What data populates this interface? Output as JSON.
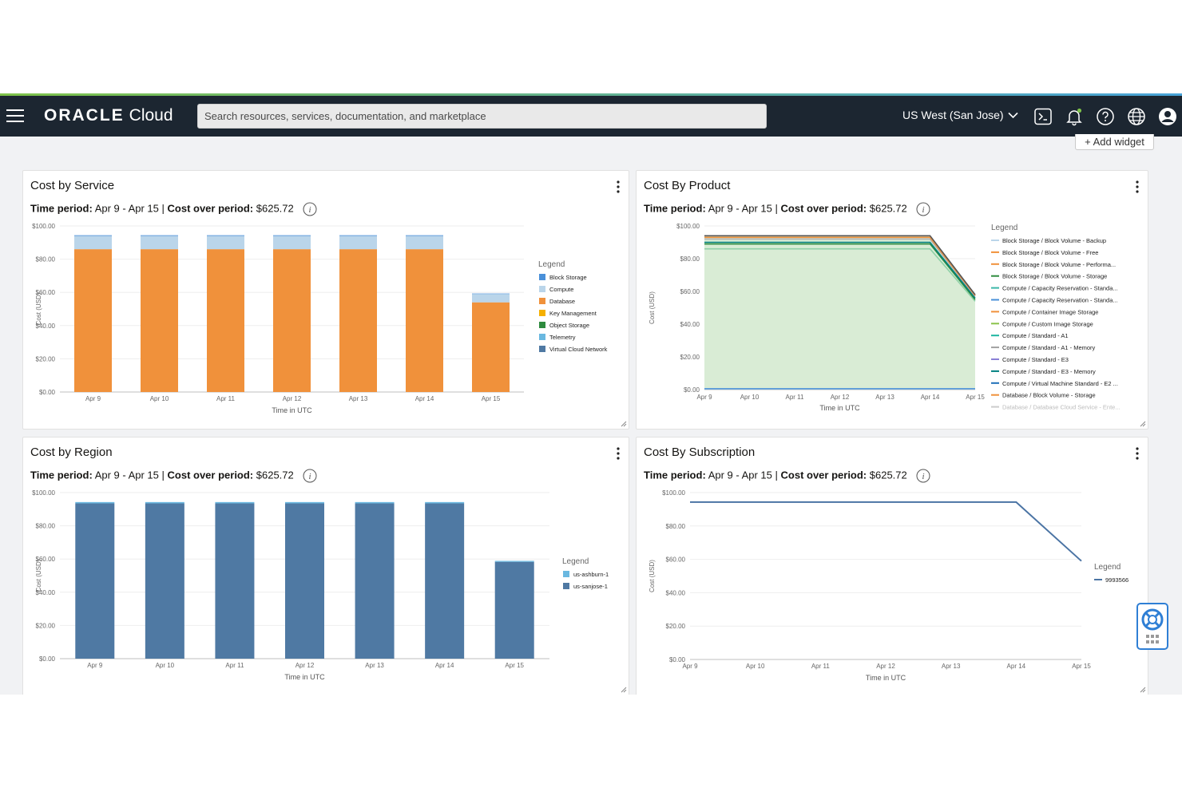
{
  "header": {
    "brand_main": "ORACLE",
    "brand_sub": "Cloud",
    "search_placeholder": "Search resources, services, documentation, and marketplace",
    "region": "US West (San Jose)",
    "icons": [
      "menu-icon",
      "cloud-shell-icon",
      "bell-icon",
      "help-icon",
      "globe-icon",
      "user-icon"
    ]
  },
  "toolbar": {
    "add_widget": "+ Add widget"
  },
  "colors": {
    "topbar": "#1c2631",
    "orange": "#f0913b",
    "light_blue": "#bad5ea",
    "steel_blue": "#4f79a3",
    "area_green": "#d9ecd5",
    "line_blue": "#4b74a4"
  },
  "widgets": {
    "service": {
      "title": "Cost by Service",
      "period_label": "Time period:",
      "period_value": "Apr 9 - Apr 15",
      "cost_label": "Cost over period:",
      "cost_value": "$625.72",
      "legend_title": "Legend",
      "legend": [
        "Block Storage",
        "Compute",
        "Database",
        "Key Management",
        "Object Storage",
        "Telemetry",
        "Virtual Cloud Network"
      ],
      "xlabel": "Time in UTC",
      "ylabel": "Cost (USD)"
    },
    "product": {
      "title": "Cost By Product",
      "period_label": "Time period:",
      "period_value": "Apr 9 - Apr 15",
      "cost_label": "Cost over period:",
      "cost_value": "$625.72",
      "legend_title": "Legend",
      "legend": [
        "Block Storage / Block Volume - Backup",
        "Block Storage / Block Volume - Free",
        "Block Storage / Block Volume - Performa...",
        "Block Storage / Block Volume - Storage",
        "Compute / Capacity Reservation - Standa...",
        "Compute / Capacity Reservation - Standa...",
        "Compute / Container Image Storage",
        "Compute / Custom Image Storage",
        "Compute / Standard - A1",
        "Compute / Standard - A1 - Memory",
        "Compute / Standard - E3",
        "Compute / Standard - E3 - Memory",
        "Compute / Virtual Machine Standard - E2 ...",
        "Database / Block Volume - Storage",
        "Database / Database Cloud Service - Ente..."
      ],
      "xlabel": "Time in UTC",
      "ylabel": "Cost (USD)"
    },
    "region": {
      "title": "Cost by Region",
      "period_label": "Time period:",
      "period_value": "Apr 9 - Apr 15",
      "cost_label": "Cost over period:",
      "cost_value": "$625.72",
      "legend_title": "Legend",
      "legend": [
        "us-ashburn-1",
        "us-sanjose-1"
      ],
      "xlabel": "Time in UTC",
      "ylabel": "Cost (USD)"
    },
    "subscription": {
      "title": "Cost By Subscription",
      "period_label": "Time period:",
      "period_value": "Apr 9 - Apr 15",
      "cost_label": "Cost over period:",
      "cost_value": "$625.72",
      "legend_title": "Legend",
      "legend": [
        "9993566"
      ],
      "xlabel": "Time in UTC",
      "ylabel": "Cost (USD)"
    }
  },
  "chart_data": [
    {
      "type": "bar",
      "stacked": true,
      "title": "Cost by Service",
      "categories": [
        "Apr 9",
        "Apr 10",
        "Apr 11",
        "Apr 12",
        "Apr 13",
        "Apr 14",
        "Apr 15"
      ],
      "yticks": [
        "$0.00",
        "$20.00",
        "$40.00",
        "$60.00",
        "$80.00",
        "$100.00"
      ],
      "ylim": [
        0,
        100
      ],
      "xlabel": "Time in UTC",
      "ylabel": "Cost (USD)",
      "legend_position": "right",
      "series": [
        {
          "name": "Database",
          "color": "#f0913b",
          "values": [
            86,
            86,
            86,
            86,
            86,
            86,
            54
          ]
        },
        {
          "name": "Compute",
          "color": "#bad5ea",
          "values": [
            8,
            8,
            8,
            8,
            8,
            8,
            5
          ]
        },
        {
          "name": "Block Storage",
          "color": "#4a90d9",
          "values": [
            0.4,
            0.4,
            0.4,
            0.4,
            0.4,
            0.4,
            0.3
          ]
        }
      ],
      "legend_colors": [
        "#4a90d9",
        "#bad5ea",
        "#f0913b",
        "#f5b000",
        "#2e8b3e",
        "#6ab8e0",
        "#4f79a3"
      ]
    },
    {
      "type": "area",
      "title": "Cost By Product",
      "categories": [
        "Apr 9",
        "Apr 10",
        "Apr 11",
        "Apr 12",
        "Apr 13",
        "Apr 14",
        "Apr 15"
      ],
      "yticks": [
        "$0.00",
        "$20.00",
        "$40.00",
        "$60.00",
        "$80.00",
        "$100.00"
      ],
      "ylim": [
        0,
        100
      ],
      "xlabel": "Time in UTC",
      "ylabel": "Cost (USD)",
      "legend_position": "right",
      "totals": [
        94,
        94,
        94,
        94,
        94,
        94,
        58
      ],
      "lines": [
        {
          "color": "#8fd1a8",
          "values": [
            86,
            86,
            86,
            86,
            86,
            86,
            54
          ]
        },
        {
          "color": "#2e8b3e",
          "values": [
            89,
            89,
            89,
            89,
            89,
            89,
            55
          ]
        },
        {
          "color": "#008080",
          "values": [
            90,
            90,
            90,
            90,
            90,
            90,
            56
          ]
        },
        {
          "color": "#b0b0b0",
          "values": [
            92,
            92,
            92,
            92,
            92,
            92,
            57
          ]
        },
        {
          "color": "#f0913b",
          "values": [
            93,
            93,
            93,
            93,
            93,
            93,
            57.5
          ]
        },
        {
          "color": "#555555",
          "values": [
            94,
            94,
            94,
            94,
            94,
            94,
            58
          ]
        },
        {
          "color": "#4a90d9",
          "values": [
            0.5,
            0.5,
            0.5,
            0.5,
            0.5,
            0.5,
            0.5
          ]
        }
      ],
      "legend_colors": [
        "#bad5ea",
        "#f0913b",
        "#f0913b",
        "#2e8b3e",
        "#3cb8a8",
        "#4a90d9",
        "#f0913b",
        "#8bc34a",
        "#1eb5a0",
        "#a0a0a0",
        "#8a7fd6",
        "#008080",
        "#1e6fb8",
        "#f0913b",
        "#cccccc"
      ]
    },
    {
      "type": "bar",
      "stacked": true,
      "title": "Cost by Region",
      "categories": [
        "Apr 9",
        "Apr 10",
        "Apr 11",
        "Apr 12",
        "Apr 13",
        "Apr 14",
        "Apr 15"
      ],
      "yticks": [
        "$0.00",
        "$20.00",
        "$40.00",
        "$60.00",
        "$80.00",
        "$100.00"
      ],
      "ylim": [
        0,
        100
      ],
      "xlabel": "Time in UTC",
      "ylabel": "Cost (USD)",
      "legend_position": "right",
      "series": [
        {
          "name": "us-sanjose-1",
          "color": "#4f79a3",
          "values": [
            93.5,
            93.5,
            93.5,
            93.5,
            93.5,
            93.5,
            58.3
          ]
        },
        {
          "name": "us-ashburn-1",
          "color": "#6ab8e0",
          "values": [
            0.8,
            0.8,
            0.8,
            0.8,
            0.8,
            0.8,
            0.6
          ]
        }
      ],
      "legend_colors": [
        "#6ab8e0",
        "#4f79a3"
      ]
    },
    {
      "type": "line",
      "title": "Cost By Subscription",
      "categories": [
        "Apr 9",
        "Apr 10",
        "Apr 11",
        "Apr 12",
        "Apr 13",
        "Apr 14",
        "Apr 15"
      ],
      "yticks": [
        "$0.00",
        "$20.00",
        "$40.00",
        "$60.00",
        "$80.00",
        "$100.00"
      ],
      "ylim": [
        0,
        100
      ],
      "xlabel": "Time in UTC",
      "ylabel": "Cost (USD)",
      "legend_position": "right",
      "series": [
        {
          "name": "9993566",
          "color": "#4b74a4",
          "values": [
            94.3,
            94.3,
            94.3,
            94.3,
            94.3,
            94.3,
            59
          ]
        }
      ],
      "legend_colors": [
        "#4b74a4"
      ]
    }
  ]
}
